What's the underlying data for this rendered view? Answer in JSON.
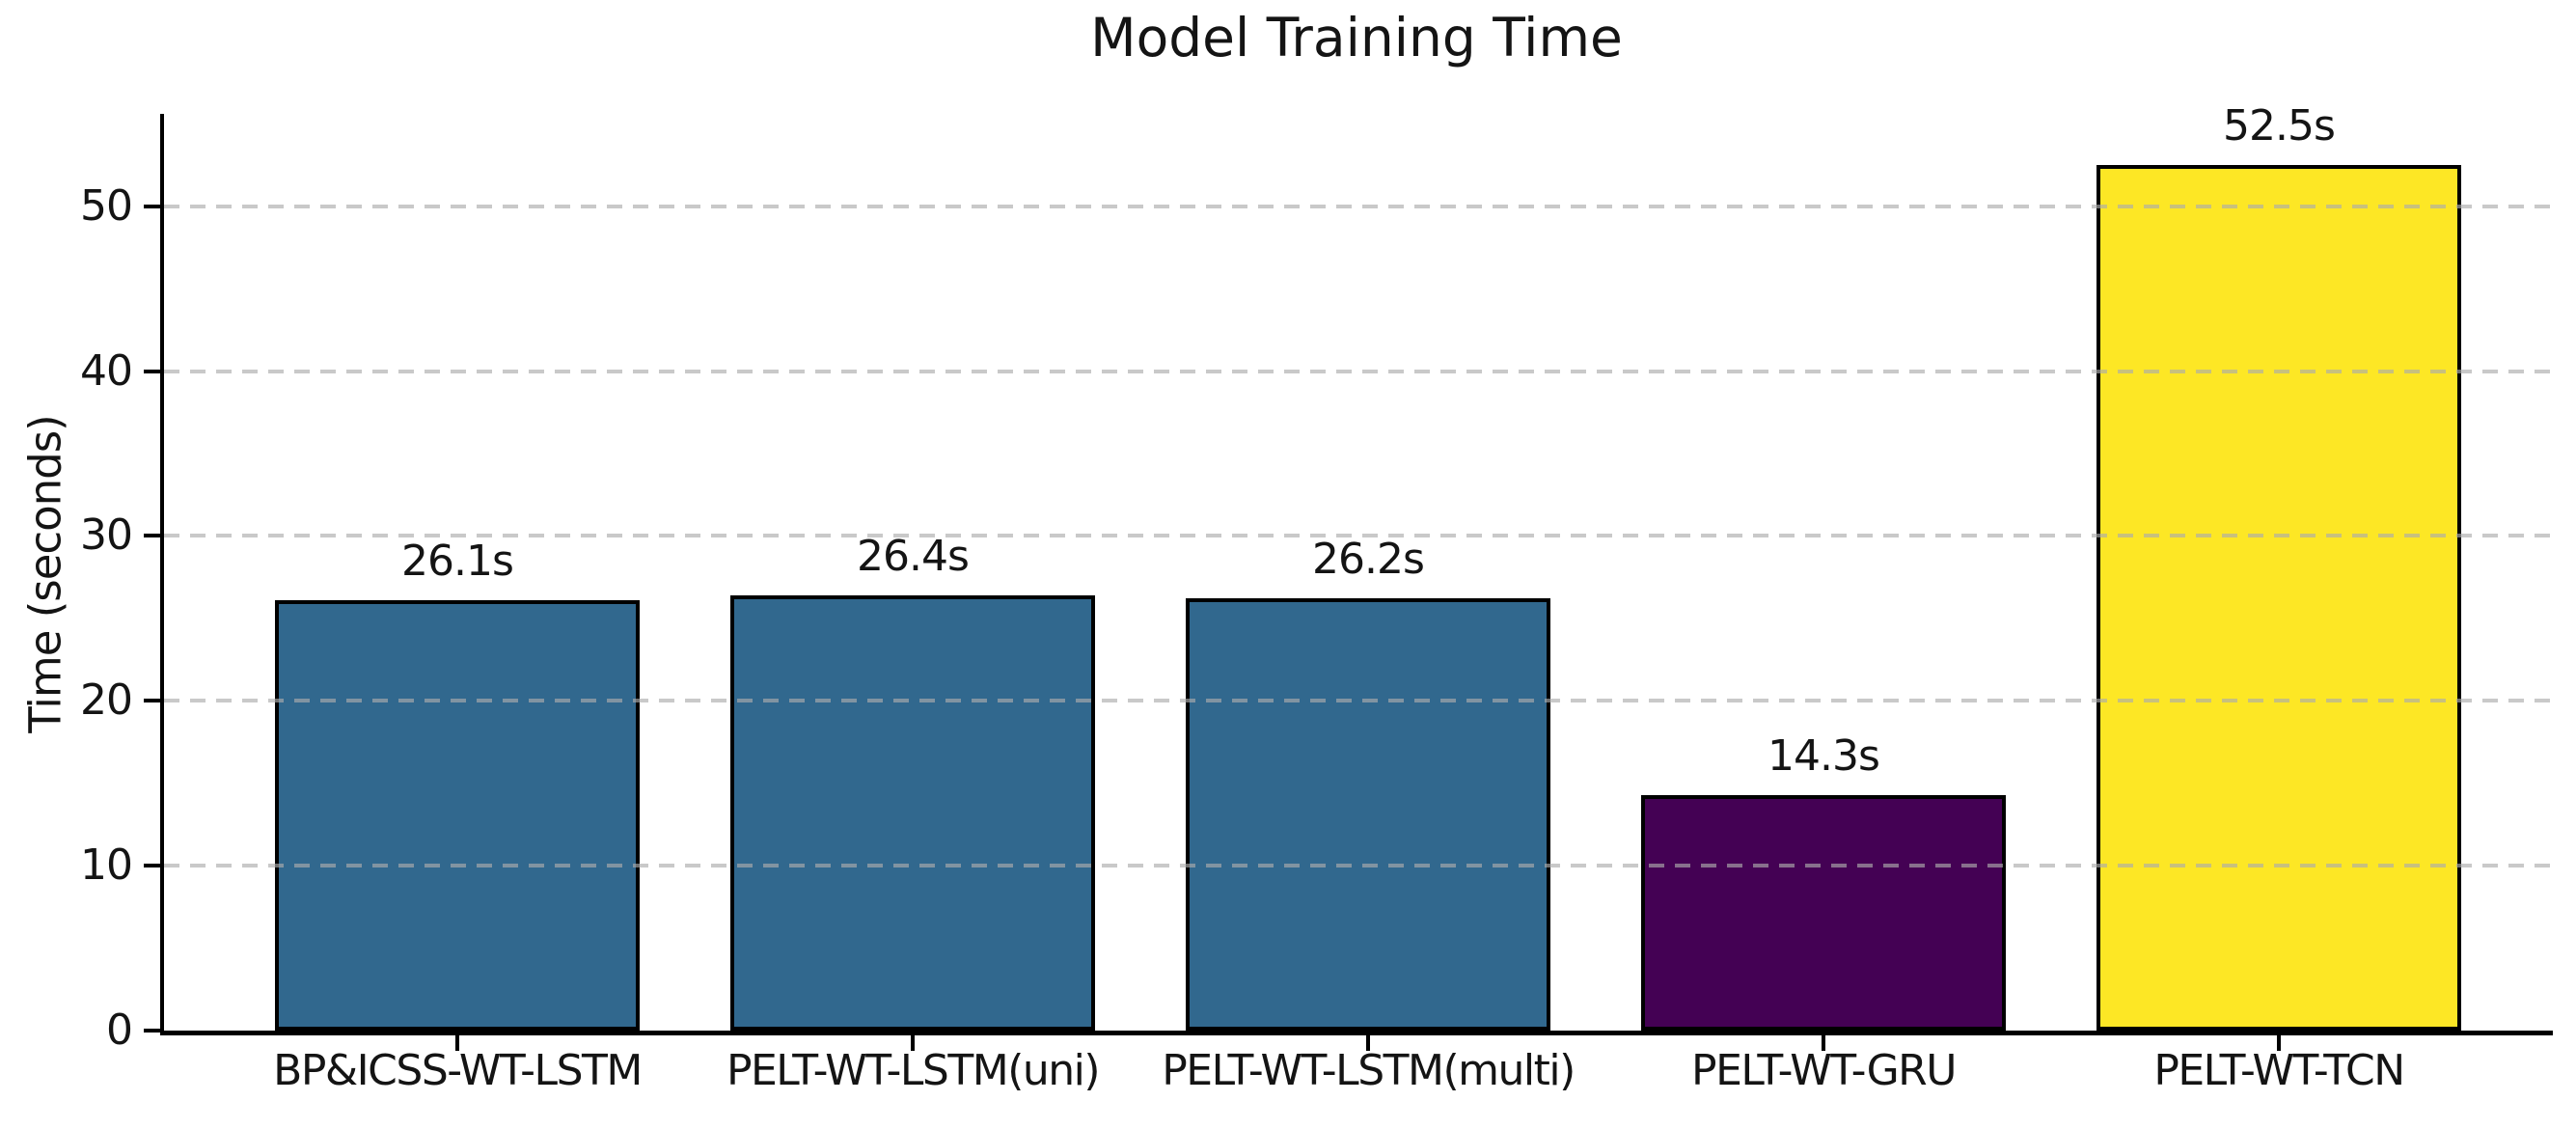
{
  "title": "Model Training Time",
  "chart_data": {
    "type": "bar",
    "title": "Model Training Time",
    "xlabel": "",
    "ylabel": "Time (seconds)",
    "categories": [
      "BP&ICSS-WT-LSTM",
      "PELT-WT-LSTM(uni)",
      "PELT-WT-LSTM(multi)",
      "PELT-WT-GRU",
      "PELT-WT-TCN"
    ],
    "values": [
      26.1,
      26.4,
      26.2,
      14.3,
      52.5
    ],
    "bar_labels": [
      "26.1s",
      "26.4s",
      "26.2s",
      "14.3s",
      "52.5s"
    ],
    "bar_colors": [
      "#31688e",
      "#31688e",
      "#31688e",
      "#440154",
      "#fde725"
    ],
    "bar_edge_color": "#000000",
    "yticks": [
      0,
      10,
      20,
      30,
      40,
      50
    ],
    "ylim": [
      0,
      55.6
    ],
    "grid": "horizontal-dashed",
    "grid_color": "#cccccc",
    "legend": null
  }
}
